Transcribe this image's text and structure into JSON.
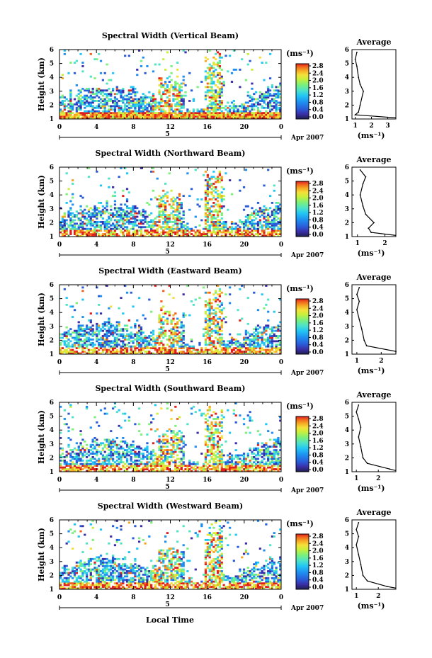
{
  "figure": {
    "xlabel": "Local Time",
    "colorbar_unit": "(ms⁻¹)",
    "avg_title": "Average",
    "avg_xlabel": "(ms⁻¹)",
    "date_label": "Apr 2007",
    "day_label": "5"
  },
  "palette": [
    "#1e1e50",
    "#3a2fa8",
    "#2a5cd8",
    "#1e8ef0",
    "#22c6f5",
    "#4fe3c7",
    "#7cf07a",
    "#c8f03c",
    "#f5e03a",
    "#f5a623",
    "#f0601e",
    "#e01e1e"
  ],
  "chart_data": [
    {
      "type": "heatmap",
      "title": "Spectral Width (Vertical Beam)",
      "ylabel": "Height (km)",
      "xlim": [
        0,
        24
      ],
      "ylim": [
        1,
        6
      ],
      "xticks": [
        "0",
        "4",
        "8",
        "12",
        "16",
        "20",
        "0"
      ],
      "yticks": [
        "1",
        "2",
        "3",
        "4",
        "5",
        "6"
      ],
      "colorbar_ticks": [
        "0.0",
        "0.4",
        "0.8",
        "1.2",
        "1.6",
        "2.0",
        "2.4",
        "2.8"
      ],
      "colorbar_range": [
        0,
        2.8
      ],
      "average": {
        "x": [
          1.0,
          1.2,
          1.3,
          1.5,
          1.3,
          1.2,
          1.1,
          1.0,
          1.1
        ],
        "y": [
          1.3,
          1.5,
          2.0,
          3.0,
          3.5,
          4.0,
          4.8,
          5.3,
          5.8
        ],
        "xlim": [
          0.8,
          3.5
        ],
        "xticks": [
          "1",
          "2",
          "3"
        ],
        "ylim": [
          1,
          6
        ],
        "yticks": [
          "1",
          "2",
          "3",
          "4",
          "5",
          "6"
        ]
      }
    },
    {
      "type": "heatmap",
      "title": "Spectral Width (Northward Beam)",
      "ylabel": "Height (km)",
      "xlim": [
        0,
        24
      ],
      "ylim": [
        1,
        6
      ],
      "xticks": [
        "0",
        "4",
        "8",
        "12",
        "16",
        "20",
        "0"
      ],
      "yticks": [
        "1",
        "2",
        "3",
        "4",
        "5",
        "6"
      ],
      "colorbar_ticks": [
        "0.0",
        "0.4",
        "0.8",
        "1.2",
        "1.6",
        "2.0",
        "2.4",
        "2.8"
      ],
      "colorbar_range": [
        0,
        2.8
      ],
      "average": {
        "x": [
          1.5,
          1.4,
          1.6,
          1.3,
          1.2,
          1.1,
          1.2,
          1.3,
          1.1
        ],
        "y": [
          1.3,
          1.6,
          2.0,
          2.6,
          3.2,
          4.0,
          4.8,
          5.3,
          5.8
        ],
        "xlim": [
          0.8,
          2.4
        ],
        "xticks": [
          "1",
          "2"
        ],
        "ylim": [
          1,
          6
        ],
        "yticks": [
          "1",
          "2",
          "3",
          "4",
          "5",
          "6"
        ]
      }
    },
    {
      "type": "heatmap",
      "title": "Spectral Width (Eastward Beam)",
      "ylabel": "Height (km)",
      "xlim": [
        0,
        24
      ],
      "ylim": [
        1,
        6
      ],
      "xticks": [
        "0",
        "4",
        "8",
        "12",
        "16",
        "20",
        "0"
      ],
      "yticks": [
        "1",
        "2",
        "3",
        "4",
        "5",
        "6"
      ],
      "colorbar_ticks": [
        "0.0",
        "0.4",
        "0.8",
        "1.2",
        "1.6",
        "2.0",
        "2.4",
        "2.8"
      ],
      "colorbar_range": [
        0,
        2.8
      ],
      "average": {
        "x": [
          2.6,
          1.4,
          1.3,
          1.2,
          1.1,
          1.0,
          1.1,
          1.0,
          1.1
        ],
        "y": [
          1.2,
          1.6,
          2.0,
          2.8,
          3.5,
          4.2,
          4.8,
          5.3,
          5.8
        ],
        "xlim": [
          0.8,
          2.6
        ],
        "xticks": [
          "1",
          "2"
        ],
        "ylim": [
          1,
          6
        ],
        "yticks": [
          "1",
          "2",
          "3",
          "4",
          "5",
          "6"
        ]
      }
    },
    {
      "type": "heatmap",
      "title": "Spectral Width (Southward Beam)",
      "ylabel": "Height (km)",
      "xlim": [
        0,
        24
      ],
      "ylim": [
        1,
        6
      ],
      "xticks": [
        "0",
        "4",
        "8",
        "12",
        "16",
        "20",
        "0"
      ],
      "yticks": [
        "1",
        "2",
        "3",
        "4",
        "5",
        "6"
      ],
      "colorbar_ticks": [
        "0.0",
        "0.4",
        "0.8",
        "1.2",
        "1.6",
        "2.0",
        "2.4",
        "2.8"
      ],
      "colorbar_range": [
        0,
        2.8
      ],
      "average": {
        "x": [
          2.5,
          1.5,
          1.3,
          1.2,
          1.1,
          1.2,
          1.1,
          1.0,
          1.1
        ],
        "y": [
          1.2,
          1.6,
          2.0,
          2.8,
          3.5,
          4.2,
          4.8,
          5.3,
          5.8
        ],
        "xlim": [
          0.8,
          2.8
        ],
        "xticks": [
          "1",
          "2"
        ],
        "ylim": [
          1,
          6
        ],
        "yticks": [
          "1",
          "2",
          "3",
          "4",
          "5",
          "6"
        ]
      }
    },
    {
      "type": "heatmap",
      "title": "Spectral Width (Westward Beam)",
      "ylabel": "Height (km)",
      "xlim": [
        0,
        24
      ],
      "ylim": [
        1,
        6
      ],
      "xticks": [
        "0",
        "4",
        "8",
        "12",
        "16",
        "20",
        "0"
      ],
      "yticks": [
        "1",
        "2",
        "3",
        "4",
        "5",
        "6"
      ],
      "colorbar_ticks": [
        "0.0",
        "0.4",
        "0.8",
        "1.2",
        "1.6",
        "2.0",
        "2.4",
        "2.8"
      ],
      "colorbar_range": [
        0,
        2.8
      ],
      "average": {
        "x": [
          2.4,
          1.5,
          1.3,
          1.2,
          1.1,
          1.0,
          1.1,
          1.0,
          1.1
        ],
        "y": [
          1.2,
          1.6,
          2.0,
          2.8,
          3.5,
          4.2,
          4.8,
          5.3,
          5.8
        ],
        "xlim": [
          0.8,
          2.8
        ],
        "xticks": [
          "1",
          "2"
        ],
        "ylim": [
          1,
          6
        ],
        "yticks": [
          "1",
          "2",
          "3",
          "4",
          "5",
          "6"
        ]
      }
    }
  ]
}
